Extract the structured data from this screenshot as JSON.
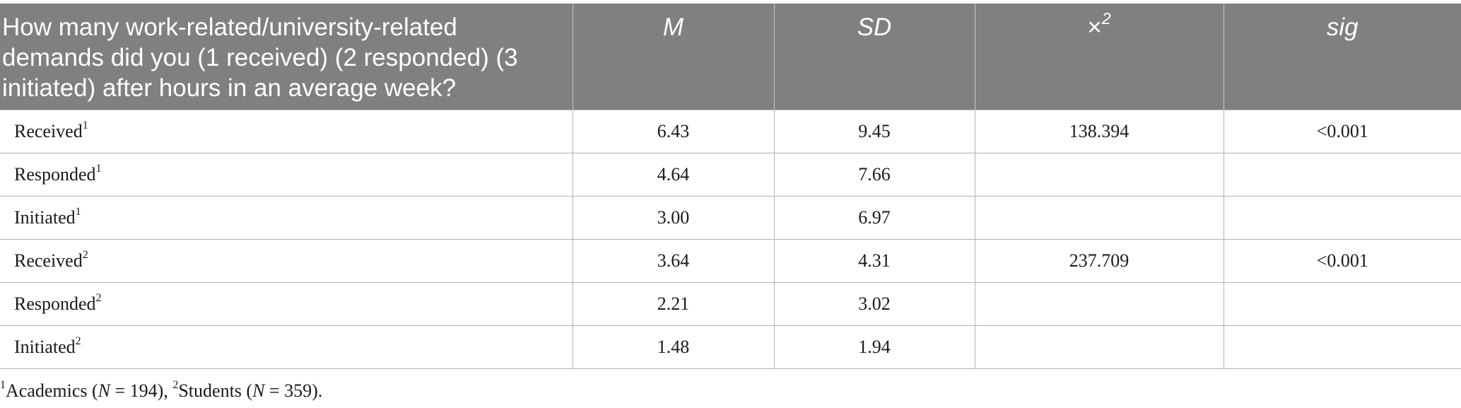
{
  "table": {
    "headers": {
      "question": "How many work-related/university-related demands did you (1 received) (2 responded) (3 initiated) after hours in an average week?",
      "mean": "M",
      "sd": "SD",
      "chi_symbol": "×",
      "chi_superscript": "2",
      "sig": "sig"
    },
    "rows": [
      {
        "label": "Received",
        "sup": "1",
        "m": "6.43",
        "sd": "9.45",
        "chi": "138.394",
        "sig": "<0.001"
      },
      {
        "label": "Responded",
        "sup": "1",
        "m": "4.64",
        "sd": "7.66",
        "chi": "",
        "sig": ""
      },
      {
        "label": "Initiated",
        "sup": "1",
        "m": "3.00",
        "sd": "6.97",
        "chi": "",
        "sig": ""
      },
      {
        "label": "Received",
        "sup": "2",
        "m": "3.64",
        "sd": "4.31",
        "chi": "237.709",
        "sig": "<0.001"
      },
      {
        "label": "Responded",
        "sup": "2",
        "m": "2.21",
        "sd": "3.02",
        "chi": "",
        "sig": ""
      },
      {
        "label": "Initiated",
        "sup": "2",
        "m": "1.48",
        "sd": "1.94",
        "chi": "",
        "sig": ""
      }
    ]
  },
  "footnote": {
    "sup1": "1",
    "group1": "Academics (",
    "n_symbol1": "N",
    "n1": " = 194), ",
    "sup2": "2",
    "group2": "Students (",
    "n_symbol2": "N",
    "n2": " = 359)."
  }
}
